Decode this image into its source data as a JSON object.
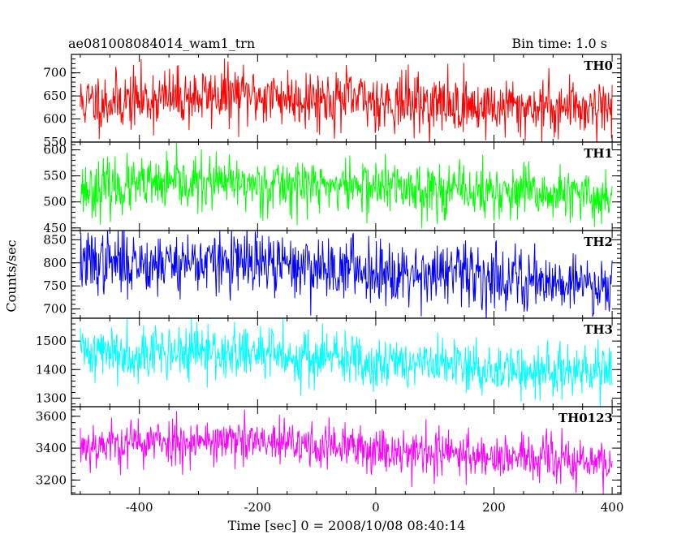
{
  "chart_data": {
    "type": "line",
    "title_left": "ae081008084014_wam1_trn",
    "title_right": "Bin time: 1.0 s",
    "xlabel": "Time [sec] 0 = 2008/10/08 08:40:14",
    "ylabel": "Counts/sec",
    "xlim": [
      -515,
      415
    ],
    "xticks": [
      -400,
      -200,
      0,
      200,
      400
    ],
    "x_range": [
      -500,
      400
    ],
    "bin_time_s": 1.0,
    "panels": [
      {
        "name": "TH0",
        "color": "#ff0000",
        "ylim": [
          550,
          740
        ],
        "yticks": [
          550,
          600,
          650,
          700
        ],
        "trend": [
          [
            -500,
            635
          ],
          [
            -250,
            652
          ],
          [
            0,
            640
          ],
          [
            200,
            625
          ],
          [
            400,
            628
          ]
        ],
        "noise": 32,
        "seed": 11
      },
      {
        "name": "TH1",
        "color": "#00ff00",
        "ylim": [
          445,
          615
        ],
        "yticks": [
          450,
          500,
          550,
          600
        ],
        "trend": [
          [
            -500,
            525
          ],
          [
            -300,
            535
          ],
          [
            0,
            530
          ],
          [
            200,
            518
          ],
          [
            400,
            508
          ]
        ],
        "noise": 26,
        "seed": 23
      },
      {
        "name": "TH2",
        "color": "#0000ff",
        "ylim": [
          680,
          870
        ],
        "yticks": [
          700,
          750,
          800,
          850
        ],
        "trend": [
          [
            -500,
            800
          ],
          [
            -300,
            802
          ],
          [
            0,
            785
          ],
          [
            200,
            770
          ],
          [
            400,
            752
          ]
        ],
        "noise": 34,
        "seed": 37
      },
      {
        "name": "TH3",
        "color": "#00ffff",
        "ylim": [
          1270,
          1580
        ],
        "yticks": [
          1300,
          1400,
          1500
        ],
        "trend": [
          [
            -500,
            1465
          ],
          [
            -200,
            1455
          ],
          [
            0,
            1430
          ],
          [
            200,
            1400
          ],
          [
            400,
            1385
          ]
        ],
        "noise": 48,
        "seed": 41
      },
      {
        "name": "TH0123",
        "color": "#ff00ff",
        "ylim": [
          3110,
          3660
        ],
        "yticks": [
          3200,
          3400,
          3600
        ],
        "trend": [
          [
            -500,
            3420
          ],
          [
            -300,
            3450
          ],
          [
            0,
            3395
          ],
          [
            200,
            3350
          ],
          [
            400,
            3300
          ]
        ],
        "noise": 75,
        "seed": 53
      }
    ]
  }
}
